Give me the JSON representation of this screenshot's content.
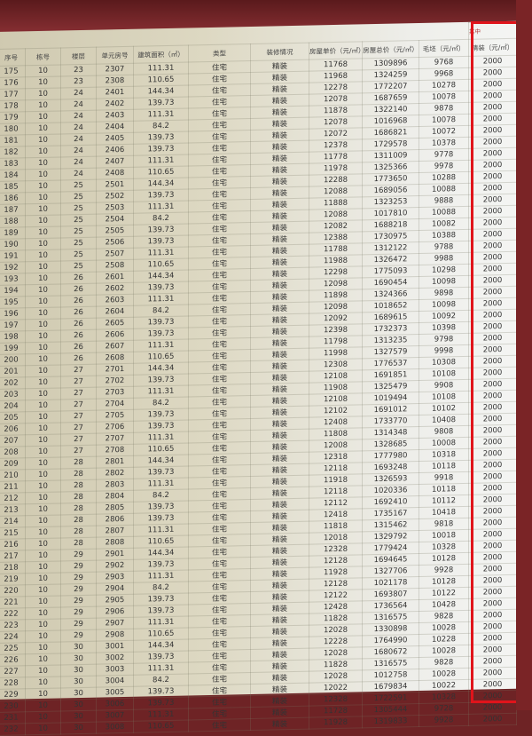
{
  "table": {
    "group_label": "其中",
    "headers": [
      "序号",
      "栋号",
      "楼层",
      "单元房号",
      "建筑面积（㎡）",
      "类型",
      "装修情况",
      "房屋单价（元/㎡）",
      "房屋总价（元/㎡）",
      "毛坯（元/㎡）",
      "精装（元/㎡）"
    ],
    "rows": [
      [
        "175",
        "10",
        "23",
        "2307",
        "111.31",
        "住宅",
        "精装",
        "11768",
        "1309896",
        "9768",
        "2000"
      ],
      [
        "176",
        "10",
        "23",
        "2308",
        "110.65",
        "住宅",
        "精装",
        "11968",
        "1324259",
        "9968",
        "2000"
      ],
      [
        "177",
        "10",
        "24",
        "2401",
        "144.34",
        "住宅",
        "精装",
        "12278",
        "1772207",
        "10278",
        "2000"
      ],
      [
        "178",
        "10",
        "24",
        "2402",
        "139.73",
        "住宅",
        "精装",
        "12078",
        "1687659",
        "10078",
        "2000"
      ],
      [
        "179",
        "10",
        "24",
        "2403",
        "111.31",
        "住宅",
        "精装",
        "11878",
        "1322140",
        "9878",
        "2000"
      ],
      [
        "180",
        "10",
        "24",
        "2404",
        "84.2",
        "住宅",
        "精装",
        "12078",
        "1016968",
        "10078",
        "2000"
      ],
      [
        "181",
        "10",
        "24",
        "2405",
        "139.73",
        "住宅",
        "精装",
        "12072",
        "1686821",
        "10072",
        "2000"
      ],
      [
        "182",
        "10",
        "24",
        "2406",
        "139.73",
        "住宅",
        "精装",
        "12378",
        "1729578",
        "10378",
        "2000"
      ],
      [
        "183",
        "10",
        "24",
        "2407",
        "111.31",
        "住宅",
        "精装",
        "11778",
        "1311009",
        "9778",
        "2000"
      ],
      [
        "184",
        "10",
        "24",
        "2408",
        "110.65",
        "住宅",
        "精装",
        "11978",
        "1325366",
        "9978",
        "2000"
      ],
      [
        "185",
        "10",
        "25",
        "2501",
        "144.34",
        "住宅",
        "精装",
        "12288",
        "1773650",
        "10288",
        "2000"
      ],
      [
        "186",
        "10",
        "25",
        "2502",
        "139.73",
        "住宅",
        "精装",
        "12088",
        "1689056",
        "10088",
        "2000"
      ],
      [
        "187",
        "10",
        "25",
        "2503",
        "111.31",
        "住宅",
        "精装",
        "11888",
        "1323253",
        "9888",
        "2000"
      ],
      [
        "188",
        "10",
        "25",
        "2504",
        "84.2",
        "住宅",
        "精装",
        "12088",
        "1017810",
        "10088",
        "2000"
      ],
      [
        "189",
        "10",
        "25",
        "2505",
        "139.73",
        "住宅",
        "精装",
        "12082",
        "1688218",
        "10082",
        "2000"
      ],
      [
        "190",
        "10",
        "25",
        "2506",
        "139.73",
        "住宅",
        "精装",
        "12388",
        "1730975",
        "10388",
        "2000"
      ],
      [
        "191",
        "10",
        "25",
        "2507",
        "111.31",
        "住宅",
        "精装",
        "11788",
        "1312122",
        "9788",
        "2000"
      ],
      [
        "192",
        "10",
        "25",
        "2508",
        "110.65",
        "住宅",
        "精装",
        "11988",
        "1326472",
        "9988",
        "2000"
      ],
      [
        "193",
        "10",
        "26",
        "2601",
        "144.34",
        "住宅",
        "精装",
        "12298",
        "1775093",
        "10298",
        "2000"
      ],
      [
        "194",
        "10",
        "26",
        "2602",
        "139.73",
        "住宅",
        "精装",
        "12098",
        "1690454",
        "10098",
        "2000"
      ],
      [
        "195",
        "10",
        "26",
        "2603",
        "111.31",
        "住宅",
        "精装",
        "11898",
        "1324366",
        "9898",
        "2000"
      ],
      [
        "196",
        "10",
        "26",
        "2604",
        "84.2",
        "住宅",
        "精装",
        "12098",
        "1018652",
        "10098",
        "2000"
      ],
      [
        "197",
        "10",
        "26",
        "2605",
        "139.73",
        "住宅",
        "精装",
        "12092",
        "1689615",
        "10092",
        "2000"
      ],
      [
        "198",
        "10",
        "26",
        "2606",
        "139.73",
        "住宅",
        "精装",
        "12398",
        "1732373",
        "10398",
        "2000"
      ],
      [
        "199",
        "10",
        "26",
        "2607",
        "111.31",
        "住宅",
        "精装",
        "11798",
        "1313235",
        "9798",
        "2000"
      ],
      [
        "200",
        "10",
        "26",
        "2608",
        "110.65",
        "住宅",
        "精装",
        "11998",
        "1327579",
        "9998",
        "2000"
      ],
      [
        "201",
        "10",
        "27",
        "2701",
        "144.34",
        "住宅",
        "精装",
        "12308",
        "1776537",
        "10308",
        "2000"
      ],
      [
        "202",
        "10",
        "27",
        "2702",
        "139.73",
        "住宅",
        "精装",
        "12108",
        "1691851",
        "10108",
        "2000"
      ],
      [
        "203",
        "10",
        "27",
        "2703",
        "111.31",
        "住宅",
        "精装",
        "11908",
        "1325479",
        "9908",
        "2000"
      ],
      [
        "204",
        "10",
        "27",
        "2704",
        "84.2",
        "住宅",
        "精装",
        "12108",
        "1019494",
        "10108",
        "2000"
      ],
      [
        "205",
        "10",
        "27",
        "2705",
        "139.73",
        "住宅",
        "精装",
        "12102",
        "1691012",
        "10102",
        "2000"
      ],
      [
        "206",
        "10",
        "27",
        "2706",
        "139.73",
        "住宅",
        "精装",
        "12408",
        "1733770",
        "10408",
        "2000"
      ],
      [
        "207",
        "10",
        "27",
        "2707",
        "111.31",
        "住宅",
        "精装",
        "11808",
        "1314348",
        "9808",
        "2000"
      ],
      [
        "208",
        "10",
        "27",
        "2708",
        "110.65",
        "住宅",
        "精装",
        "12008",
        "1328685",
        "10008",
        "2000"
      ],
      [
        "209",
        "10",
        "28",
        "2801",
        "144.34",
        "住宅",
        "精装",
        "12318",
        "1777980",
        "10318",
        "2000"
      ],
      [
        "210",
        "10",
        "28",
        "2802",
        "139.73",
        "住宅",
        "精装",
        "12118",
        "1693248",
        "10118",
        "2000"
      ],
      [
        "211",
        "10",
        "28",
        "2803",
        "111.31",
        "住宅",
        "精装",
        "11918",
        "1326593",
        "9918",
        "2000"
      ],
      [
        "212",
        "10",
        "28",
        "2804",
        "84.2",
        "住宅",
        "精装",
        "12118",
        "1020336",
        "10118",
        "2000"
      ],
      [
        "213",
        "10",
        "28",
        "2805",
        "139.73",
        "住宅",
        "精装",
        "12112",
        "1692410",
        "10112",
        "2000"
      ],
      [
        "214",
        "10",
        "28",
        "2806",
        "139.73",
        "住宅",
        "精装",
        "12418",
        "1735167",
        "10418",
        "2000"
      ],
      [
        "215",
        "10",
        "28",
        "2807",
        "111.31",
        "住宅",
        "精装",
        "11818",
        "1315462",
        "9818",
        "2000"
      ],
      [
        "216",
        "10",
        "28",
        "2808",
        "110.65",
        "住宅",
        "精装",
        "12018",
        "1329792",
        "10018",
        "2000"
      ],
      [
        "217",
        "10",
        "29",
        "2901",
        "144.34",
        "住宅",
        "精装",
        "12328",
        "1779424",
        "10328",
        "2000"
      ],
      [
        "218",
        "10",
        "29",
        "2902",
        "139.73",
        "住宅",
        "精装",
        "12128",
        "1694645",
        "10128",
        "2000"
      ],
      [
        "219",
        "10",
        "29",
        "2903",
        "111.31",
        "住宅",
        "精装",
        "11928",
        "1327706",
        "9928",
        "2000"
      ],
      [
        "220",
        "10",
        "29",
        "2904",
        "84.2",
        "住宅",
        "精装",
        "12128",
        "1021178",
        "10128",
        "2000"
      ],
      [
        "221",
        "10",
        "29",
        "2905",
        "139.73",
        "住宅",
        "精装",
        "12122",
        "1693807",
        "10122",
        "2000"
      ],
      [
        "222",
        "10",
        "29",
        "2906",
        "139.73",
        "住宅",
        "精装",
        "12428",
        "1736564",
        "10428",
        "2000"
      ],
      [
        "223",
        "10",
        "29",
        "2907",
        "111.31",
        "住宅",
        "精装",
        "11828",
        "1316575",
        "9828",
        "2000"
      ],
      [
        "224",
        "10",
        "29",
        "2908",
        "110.65",
        "住宅",
        "精装",
        "12028",
        "1330898",
        "10028",
        "2000"
      ],
      [
        "225",
        "10",
        "30",
        "3001",
        "144.34",
        "住宅",
        "精装",
        "12228",
        "1764990",
        "10228",
        "2000"
      ],
      [
        "226",
        "10",
        "30",
        "3002",
        "139.73",
        "住宅",
        "精装",
        "12028",
        "1680672",
        "10028",
        "2000"
      ],
      [
        "227",
        "10",
        "30",
        "3003",
        "111.31",
        "住宅",
        "精装",
        "11828",
        "1316575",
        "9828",
        "2000"
      ],
      [
        "228",
        "10",
        "30",
        "3004",
        "84.2",
        "住宅",
        "精装",
        "12028",
        "1012758",
        "10028",
        "2000"
      ],
      [
        "229",
        "10",
        "30",
        "3005",
        "139.73",
        "住宅",
        "精装",
        "12022",
        "1679834",
        "10022",
        "2000"
      ],
      [
        "230",
        "10",
        "30",
        "3006",
        "139.73",
        "住宅",
        "精装",
        "12328",
        "1722591",
        "10328",
        "2000"
      ],
      [
        "231",
        "10",
        "30",
        "3007",
        "111.31",
        "住宅",
        "精装",
        "11728",
        "1305444",
        "9728",
        "2000"
      ],
      [
        "232",
        "10",
        "30",
        "3008",
        "110.65",
        "住宅",
        "精装",
        "11928",
        "1319833",
        "9928",
        "2000"
      ]
    ]
  },
  "colors": {
    "background": "#6e2325",
    "highlight_box": "#e0141b"
  }
}
